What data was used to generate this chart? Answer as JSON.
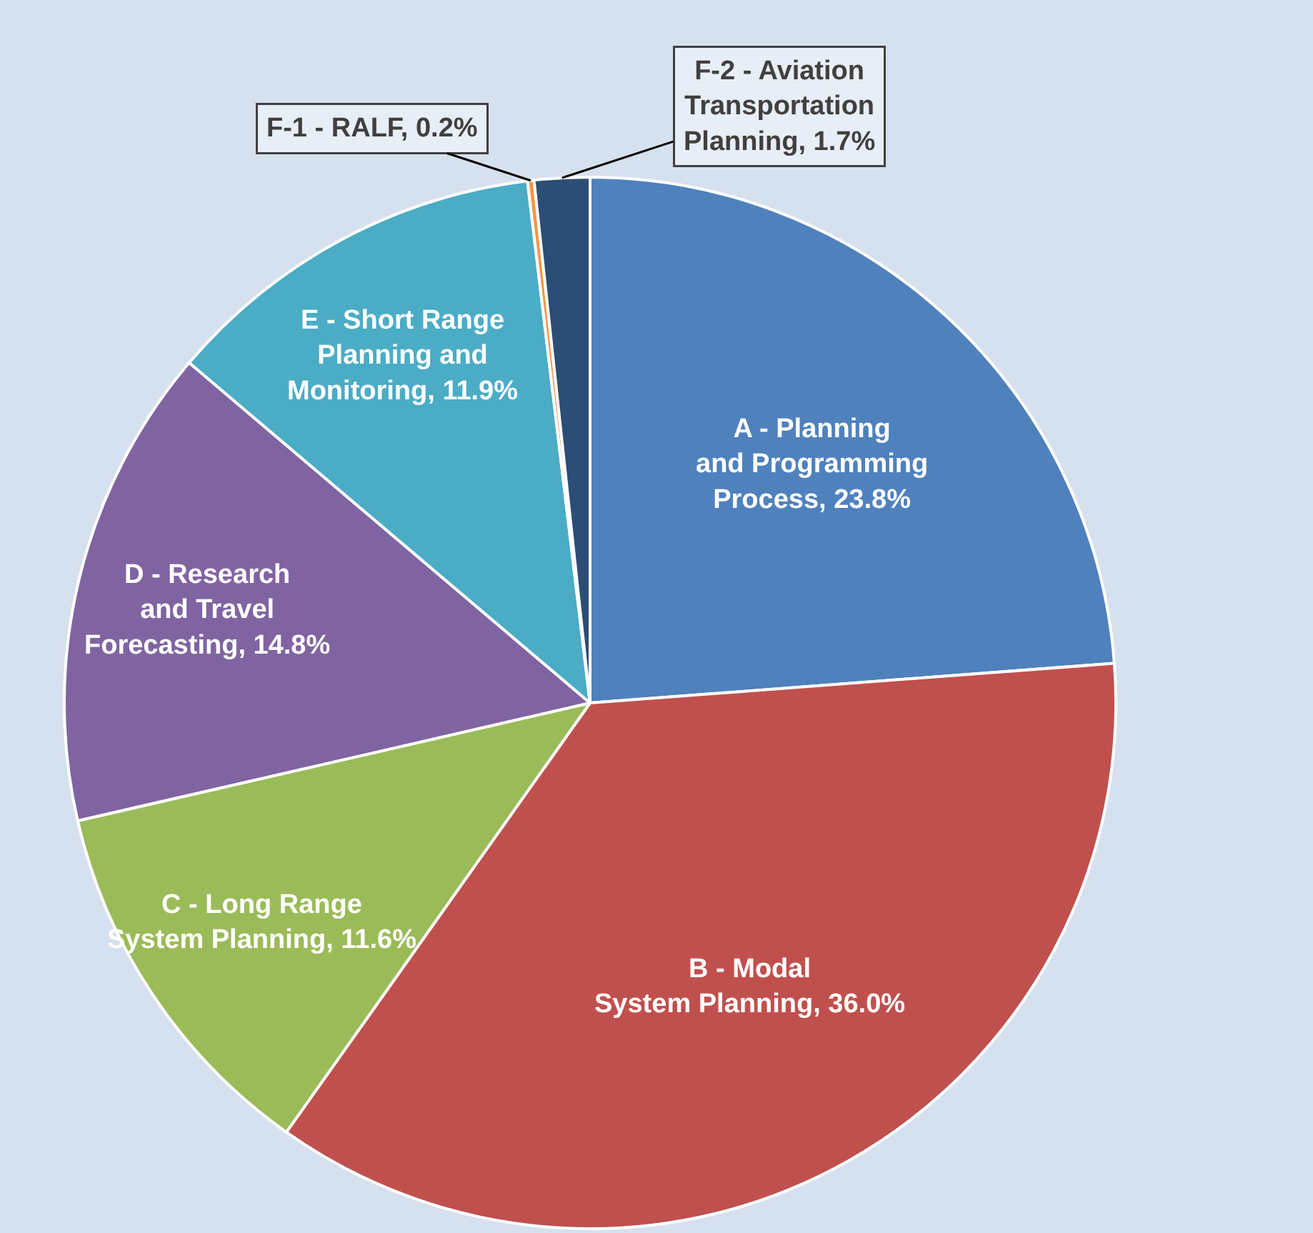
{
  "chart_data": {
    "type": "pie",
    "categories": [
      "A - Planning and Programming Process",
      "B - Modal System Planning",
      "C - Long Range System Planning",
      "D - Research and Travel Forecasting",
      "E - Short Range Planning and Monitoring",
      "F-1 - RALF",
      "F-2 - Aviation Transportation Planning"
    ],
    "values": [
      23.8,
      36.0,
      11.6,
      14.8,
      11.9,
      0.2,
      1.7
    ],
    "value_labels": [
      "23.8%",
      "36.0%",
      "11.6%",
      "14.8%",
      "11.9%",
      "0.2%",
      "1.7%"
    ],
    "colors": [
      "#4f81bd",
      "#c0504d",
      "#9bbb59",
      "#8064a2",
      "#4bacc6",
      "#f79646",
      "#2c4d75"
    ]
  }
}
